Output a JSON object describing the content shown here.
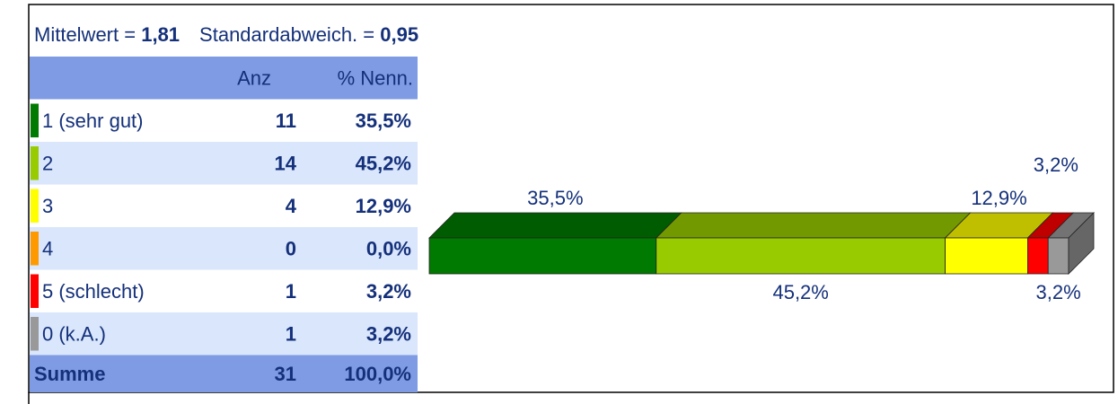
{
  "summary": {
    "mean_label": "Mittelwert =",
    "mean": "1,81",
    "sd_label": "Standardabweich. =",
    "sd": "0,95"
  },
  "table": {
    "header": [
      "Anz",
      "% Nenn."
    ],
    "rows": [
      [
        "1 (sehr gut)",
        "11",
        "35,5%"
      ],
      [
        "2",
        "14",
        "45,2%"
      ],
      [
        "3",
        "4",
        "12,9%"
      ],
      [
        "4",
        "0",
        "0,0%"
      ],
      [
        "5 (schlecht)",
        "1",
        "3,2%"
      ],
      [
        "0 (k.A.)",
        "1",
        "3,2%"
      ]
    ],
    "total": [
      "Summe",
      "31",
      "100,0%"
    ]
  },
  "chart_data": {
    "type": "bar",
    "orientation": "horizontal",
    "stacked": true,
    "three_d": true,
    "xlim": [
      0,
      100
    ],
    "values": [
      35.5,
      45.2,
      12.9,
      0,
      3.2,
      3.2
    ],
    "value_labels": [
      "35,5%",
      "45,2%",
      "12,9%",
      null,
      "3,2%",
      "3,2%"
    ],
    "colors": [
      "#007a00",
      "#99cc00",
      "#ffff00",
      "#ff9900",
      "#ff0000",
      "#999999"
    ]
  }
}
